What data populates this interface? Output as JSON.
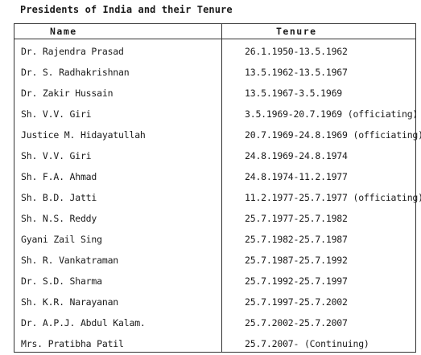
{
  "title": "Presidents of India and their Tenure",
  "headers": {
    "name": "Name",
    "tenure": "Tenure"
  },
  "rows": [
    {
      "name": "Dr. Rajendra Prasad",
      "tenure": "26.1.1950-13.5.1962"
    },
    {
      "name": "Dr. S. Radhakrishnan",
      "tenure": "13.5.1962-13.5.1967"
    },
    {
      "name": "Dr. Zakir Hussain",
      "tenure": "13.5.1967-3.5.1969"
    },
    {
      "name": "Sh. V.V. Giri",
      "tenure": "3.5.1969-20.7.1969 (officiating)"
    },
    {
      "name": "Justice M. Hidayatullah",
      "tenure": "20.7.1969-24.8.1969 (officiating)"
    },
    {
      "name": "Sh. V.V. Giri",
      "tenure": "24.8.1969-24.8.1974"
    },
    {
      "name": "Sh. F.A. Ahmad",
      "tenure": "24.8.1974-11.2.1977"
    },
    {
      "name": "Sh. B.D. Jatti",
      "tenure": "11.2.1977-25.7.1977 (officiating)"
    },
    {
      "name": "Sh. N.S. Reddy",
      "tenure": "25.7.1977-25.7.1982"
    },
    {
      "name": "Gyani Zail Sing",
      "tenure": "25.7.1982-25.7.1987"
    },
    {
      "name": "Sh. R. Vankatraman",
      "tenure": "25.7.1987-25.7.1992"
    },
    {
      "name": "Dr. S.D. Sharma",
      "tenure": "25.7.1992-25.7.1997"
    },
    {
      "name": "Sh. K.R. Narayanan",
      "tenure": "25.7.1997-25.7.2002"
    },
    {
      "name": "Dr. A.P.J. Abdul Kalam.",
      "tenure": "25.7.2002-25.7.2007"
    },
    {
      "name": "Mrs. Pratibha Patil",
      "tenure": "25.7.2007- (Continuing)"
    }
  ]
}
